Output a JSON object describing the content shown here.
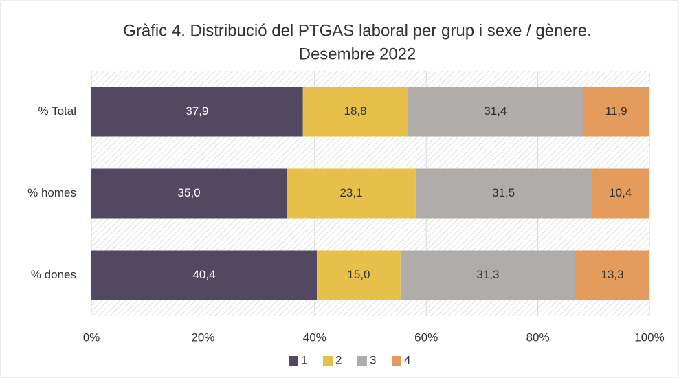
{
  "chart_data": {
    "type": "stacked_bar_horizontal",
    "title": [
      "Gràfic 4. Distribució del PTGAS laboral per grup i sexe / gènere.",
      "Desembre 2022"
    ],
    "categories": [
      "% Total",
      "% homes",
      "% dones"
    ],
    "series": [
      {
        "name": "1",
        "color": "#534862",
        "values": [
          37.9,
          35.0,
          40.4
        ],
        "value_labels": [
          "37,9",
          "35,0",
          "40,4"
        ]
      },
      {
        "name": "2",
        "color": "#e6c04a",
        "values": [
          18.8,
          23.1,
          15.0
        ],
        "value_labels": [
          "18,8",
          "23,1",
          "15,0"
        ]
      },
      {
        "name": "3",
        "color": "#b0acaa",
        "values": [
          31.4,
          31.5,
          31.3
        ],
        "value_labels": [
          "31,4",
          "31,5",
          "31,3"
        ]
      },
      {
        "name": "4",
        "color": "#e49b5b",
        "values": [
          11.9,
          10.4,
          13.3
        ],
        "value_labels": [
          "11,9",
          "10,4",
          "13,3"
        ]
      }
    ],
    "xlim": [
      0,
      100
    ],
    "xticks": [
      {
        "value": 0,
        "label": "0%"
      },
      {
        "value": 20,
        "label": "20%"
      },
      {
        "value": 40,
        "label": "40%"
      },
      {
        "value": 60,
        "label": "60%"
      },
      {
        "value": 80,
        "label": "80%"
      },
      {
        "value": 100,
        "label": "100%"
      }
    ],
    "grid": true,
    "legend": "bottom"
  }
}
